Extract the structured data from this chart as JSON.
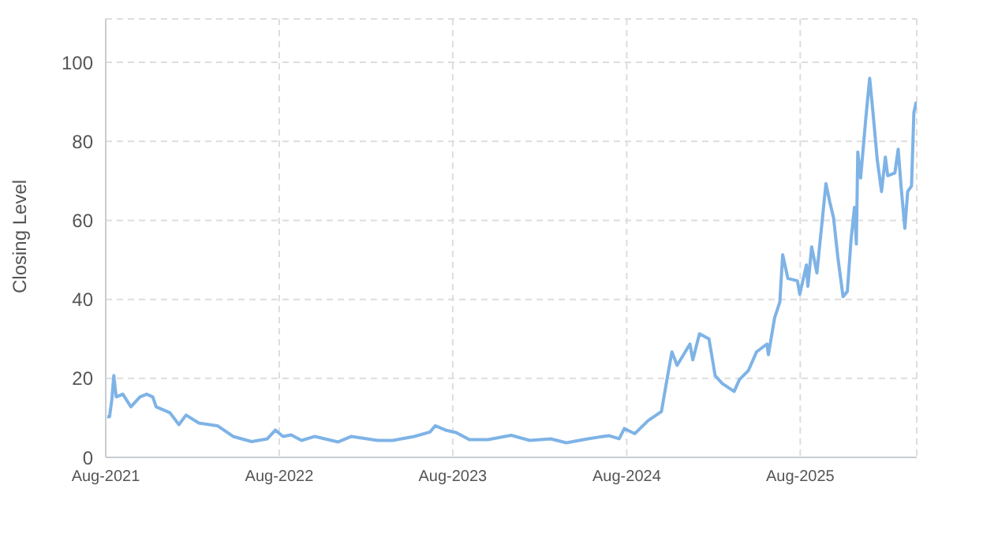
{
  "chart_data": {
    "type": "line",
    "ylabel": "Closing Level",
    "xlim": [
      "2021-08-01",
      "2026-04-03"
    ],
    "xticks": [
      {
        "value": "2021-08-01",
        "label": "Aug-2021"
      },
      {
        "value": "2022-08-01",
        "label": "Aug-2022"
      },
      {
        "value": "2023-08-01",
        "label": "Aug-2023"
      },
      {
        "value": "2024-08-01",
        "label": "Aug-2024"
      },
      {
        "value": "2025-08-01",
        "label": "Aug-2025"
      }
    ],
    "ylim": [
      0,
      111
    ],
    "yticks": [
      0,
      20,
      40,
      60,
      80,
      100
    ],
    "grid": true,
    "legend": false,
    "marker": "none",
    "line_style": "solid",
    "x": [
      "2021-08-04",
      "2021-08-09",
      "2021-08-14",
      "2021-08-18",
      "2021-08-23",
      "2021-09-06",
      "2021-09-23",
      "2021-10-12",
      "2021-10-26",
      "2021-11-08",
      "2021-11-15",
      "2021-12-14",
      "2022-01-02",
      "2022-01-17",
      "2022-02-13",
      "2022-03-24",
      "2022-04-26",
      "2022-06-04",
      "2022-07-07",
      "2022-07-24",
      "2022-08-09",
      "2022-08-26",
      "2022-09-17",
      "2022-10-15",
      "2022-12-03",
      "2022-12-31",
      "2023-02-24",
      "2023-03-28",
      "2023-05-12",
      "2023-06-14",
      "2023-06-25",
      "2023-07-17",
      "2023-08-08",
      "2023-09-05",
      "2023-10-14",
      "2023-12-02",
      "2024-01-10",
      "2024-02-23",
      "2024-03-27",
      "2024-05-11",
      "2024-06-24",
      "2024-07-16",
      "2024-07-27",
      "2024-08-18",
      "2024-09-15",
      "2024-10-13",
      "2024-10-24",
      "2024-11-04",
      "2024-11-15",
      "2024-12-12",
      "2024-12-18",
      "2025-01-01",
      "2025-01-21",
      "2025-02-03",
      "2025-02-18",
      "2025-03-15",
      "2025-03-26",
      "2025-04-14",
      "2025-05-01",
      "2025-05-23",
      "2025-05-26",
      "2025-06-08",
      "2025-06-19",
      "2025-06-25",
      "2025-07-06",
      "2025-07-26",
      "2025-07-31",
      "2025-08-14",
      "2025-08-17",
      "2025-08-25",
      "2025-09-05",
      "2025-09-24",
      "2025-10-02",
      "2025-10-10",
      "2025-10-19",
      "2025-10-30",
      "2025-11-08",
      "2025-11-16",
      "2025-11-23",
      "2025-11-27",
      "2025-11-30",
      "2025-12-06",
      "2025-12-17",
      "2025-12-25",
      "2026-01-01",
      "2026-01-10",
      "2026-01-19",
      "2026-01-27",
      "2026-02-01",
      "2026-02-16",
      "2026-02-23",
      "2026-03-01",
      "2026-03-09",
      "2026-03-15",
      "2026-03-23",
      "2026-03-28",
      "2026-04-02"
    ],
    "series": [
      {
        "color": "#7eb3e6",
        "values": [
          10.3,
          10.3,
          14.7,
          20.7,
          15.3,
          16,
          12.8,
          15.3,
          16,
          15.3,
          12.8,
          11.3,
          8.3,
          10.7,
          8.7,
          8,
          5.3,
          4,
          4.7,
          6.9,
          5.3,
          5.7,
          4.3,
          5.3,
          3.9,
          5.3,
          4.3,
          4.3,
          5.3,
          6.4,
          8,
          6.9,
          6.3,
          4.5,
          4.5,
          5.6,
          4.3,
          4.7,
          3.7,
          4.7,
          5.5,
          4.7,
          7.3,
          6,
          9.3,
          11.6,
          19.3,
          26.7,
          23.3,
          28.7,
          24.7,
          31.3,
          30,
          20.7,
          18.7,
          16.7,
          19.7,
          22,
          26.7,
          28.7,
          26,
          35.3,
          39.3,
          51.3,
          45.3,
          44.7,
          41.3,
          48.7,
          43.3,
          53.3,
          46.7,
          69.3,
          64.7,
          60.7,
          50.7,
          40.7,
          42,
          55.3,
          63.3,
          54,
          77.3,
          70.7,
          86,
          96,
          87.3,
          75.3,
          67.3,
          76,
          71.3,
          72,
          78,
          68.7,
          58,
          67.3,
          68.7,
          87.3,
          90
        ]
      }
    ]
  }
}
